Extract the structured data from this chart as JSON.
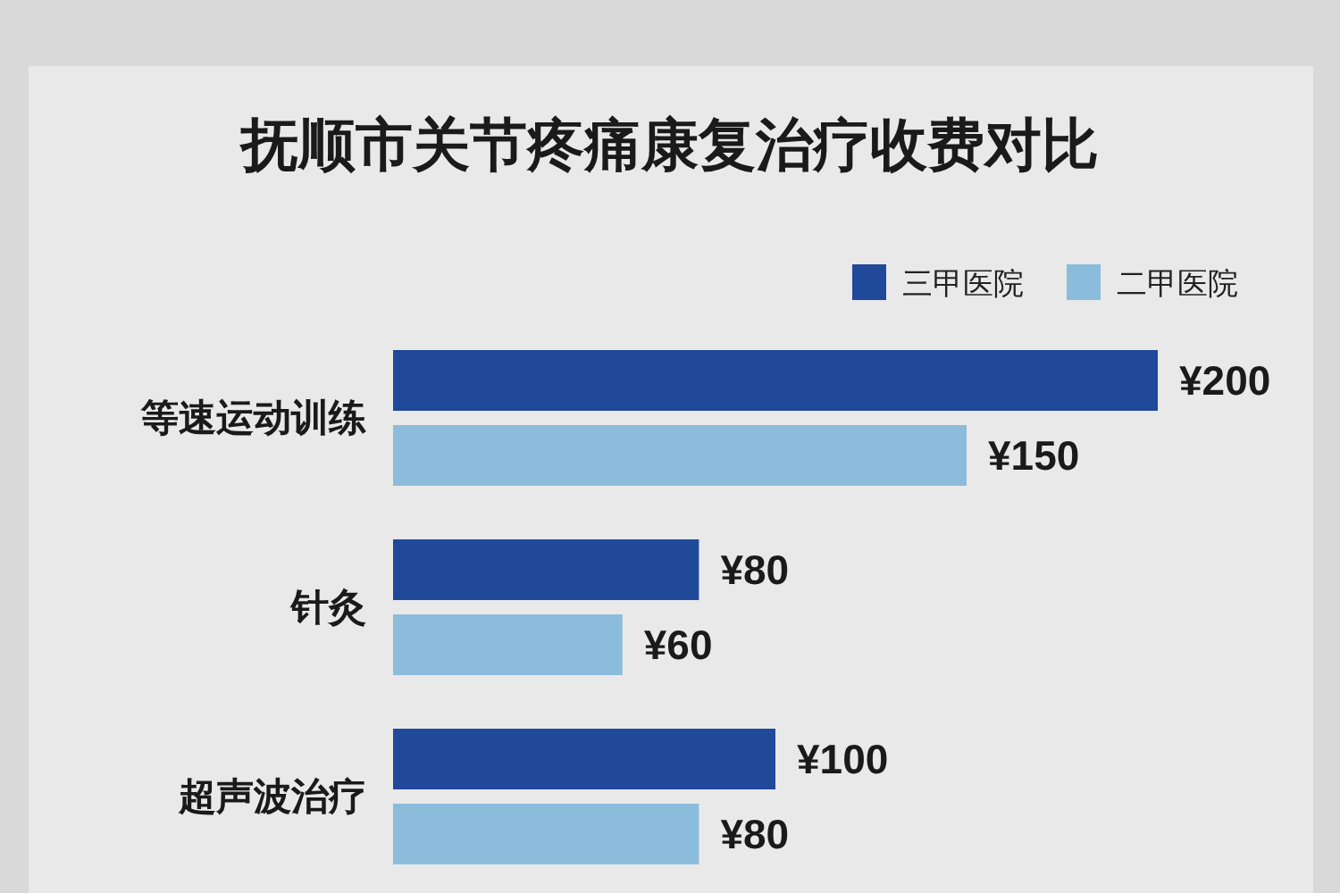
{
  "chart_data": {
    "type": "bar",
    "orientation": "horizontal",
    "title": "抚顺市关节疼痛康复治疗收费对比",
    "categories": [
      "等速运动训练",
      "针灸",
      "超声波治疗"
    ],
    "series": [
      {
        "name": "三甲医院",
        "color": "#21499a",
        "values": [
          200,
          80,
          100
        ],
        "value_labels": [
          "¥200",
          "¥80",
          "¥100"
        ]
      },
      {
        "name": "二甲医院",
        "color": "#8bbcdc",
        "values": [
          150,
          60,
          80
        ],
        "value_labels": [
          "¥150",
          "¥60",
          "¥80"
        ]
      }
    ],
    "legend": "top right",
    "tick_labels": "y"
  }
}
